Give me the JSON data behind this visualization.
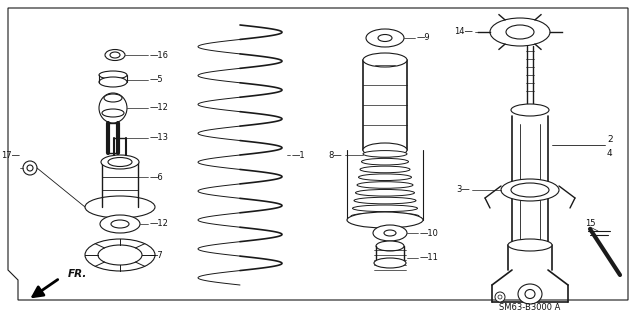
{
  "bg_color": "#ffffff",
  "border_color": "#333333",
  "part_code": "SM63-B3000 A",
  "fr_label": "FR.",
  "line_color": "#1a1a1a",
  "text_color": "#111111",
  "fig_w": 6.4,
  "fig_h": 3.19,
  "dpi": 100
}
